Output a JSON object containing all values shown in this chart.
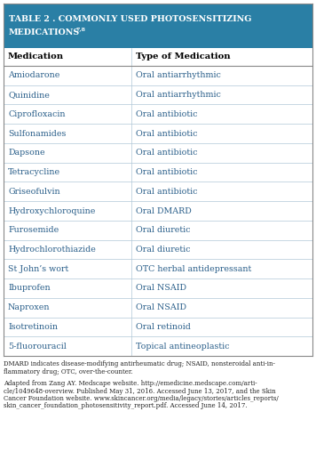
{
  "title_line1": "TABLE 2 . COMMONLY USED PHOTOSENSITIZING",
  "title_line2": "MEDICATIONS",
  "title_superscript": "7,8",
  "header": [
    "Medication",
    "Type of Medication"
  ],
  "rows": [
    [
      "Amiodarone",
      "Oral antiarrhythmic"
    ],
    [
      "Quinidine",
      "Oral antiarrhythmic"
    ],
    [
      "Ciprofloxacin",
      "Oral antibiotic"
    ],
    [
      "Sulfonamides",
      "Oral antibiotic"
    ],
    [
      "Dapsone",
      "Oral antibiotic"
    ],
    [
      "Tetracycline",
      "Oral antibiotic"
    ],
    [
      "Griseofulvin",
      "Oral antibiotic"
    ],
    [
      "Hydroxychloroquine",
      "Oral DMARD"
    ],
    [
      "Furosemide",
      "Oral diuretic"
    ],
    [
      "Hydrochlorothiazide",
      "Oral diuretic"
    ],
    [
      "St John’s wort",
      "OTC herbal antidepressant"
    ],
    [
      "Ibuprofen",
      "Oral NSAID"
    ],
    [
      "Naproxen",
      "Oral NSAID"
    ],
    [
      "Isotretinoin",
      "Oral retinoid"
    ],
    [
      "5-fluorouracil",
      "Topical antineoplastic"
    ]
  ],
  "footnote1": "DMARD indicates disease-modifying antirheumatic drug; NSAID, nonsteroidal anti-in-\nflammatory drug; OTC, over-the-counter.",
  "footnote2": "Adapted from Zang AY. Medscape website. http://emedicine.medscape.com/arti-\ncle/1049648-overview. Published May 31, 2016. Accessed June 13, 2017, and the Skin\nCancer Foundation website. www.skincancer.org/media/legacy/stories/articles_reports/\nskin_cancer_foundation_photosensitivity_report.pdf. Accessed June 14, 2017.",
  "header_bg": "#2a7fa5",
  "header_text_color": "#ffffff",
  "col_header_text_color": "#000000",
  "row_text_color": "#2a5f8a",
  "grid_color": "#b0c8d8",
  "border_color": "#888888",
  "col_split": 0.415,
  "title_fontsize": 6.8,
  "header_fontsize": 7.2,
  "row_fontsize": 6.8,
  "footnote_fontsize": 5.0,
  "figsize": [
    3.56,
    5.35
  ],
  "dpi": 100
}
